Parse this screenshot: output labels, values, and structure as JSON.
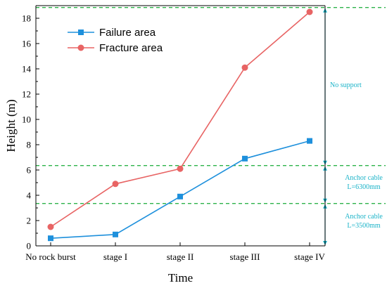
{
  "chart_data": {
    "type": "line",
    "categories": [
      "No rock burst",
      "stage I",
      "stage II",
      "stage III",
      "stage IV"
    ],
    "series": [
      {
        "name": "Failure area",
        "values": [
          0.6,
          0.9,
          3.9,
          6.9,
          8.3
        ],
        "color": "#1e90dc",
        "marker": "square"
      },
      {
        "name": "Fracture area",
        "values": [
          1.5,
          4.9,
          6.1,
          14.1,
          18.5
        ],
        "color": "#e86464",
        "marker": "circle"
      }
    ],
    "xlabel": "Time",
    "ylabel": "Height (m)",
    "ylim": [
      0,
      19
    ],
    "yticks": [
      0,
      2,
      4,
      6,
      8,
      10,
      12,
      14,
      16,
      18
    ],
    "grid": false,
    "legend_position": "top-left",
    "reference_lines": [
      {
        "y": 3.35,
        "color": "#2db34a"
      },
      {
        "y": 6.35,
        "color": "#2db34a"
      },
      {
        "y": 18.85,
        "color": "#2db34a"
      }
    ],
    "annotations": [
      {
        "lines": [
          "No support"
        ],
        "color": "#1ab3c8"
      },
      {
        "lines": [
          "Anchor cable",
          "L=6300mm"
        ],
        "color": "#1ab3c8"
      },
      {
        "lines": [
          "Anchor cable",
          "L=3500mm"
        ],
        "color": "#1ab3c8"
      }
    ],
    "bracket_color": "#1ab3c8"
  }
}
